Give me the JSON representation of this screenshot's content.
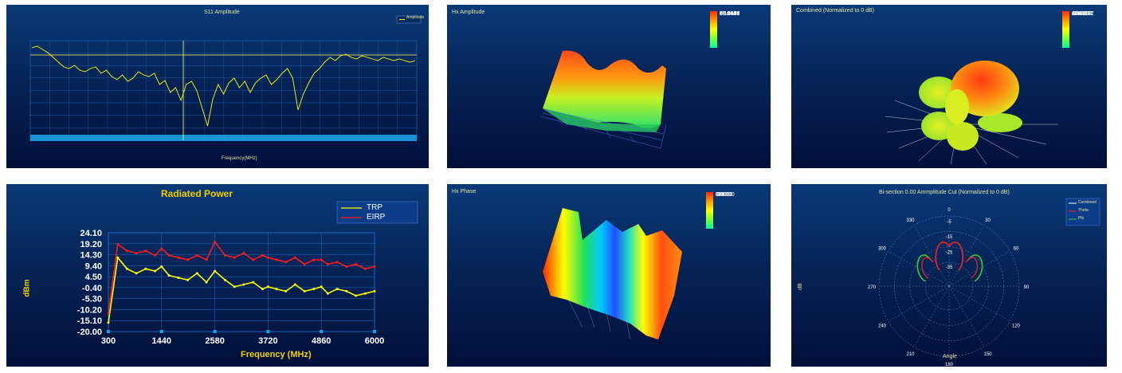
{
  "colors": {
    "panel_bg_top": "#0a3a78",
    "panel_bg_bottom": "#020f3a",
    "yellow": "#ffff00",
    "red": "#ff1a1a",
    "green": "#33cc33",
    "grid": "#1e6ec8"
  },
  "panels": {
    "s11": {
      "title": "S11 Amplitude",
      "legend": "Amplitude",
      "xlabel": "Frequency(MHz)"
    },
    "hx_amp": {
      "title": "Hx Amplitude",
      "scale": [
        "80.3856",
        "73.5346",
        "66.8837",
        "60.1327",
        "53.3818"
      ],
      "unit": "dBuA/m"
    },
    "combined": {
      "title": "Combined (Normalized to 0 dB)",
      "scale": [
        "16.3963",
        "6.4640",
        "-3.4684",
        "-13.3807",
        "-23.3131"
      ],
      "unit": "A/m"
    },
    "hx_phase": {
      "title": "Hx Phase",
      "scale": [
        "180.00",
        "90.00",
        "0.00",
        "-90.00",
        "-180.00"
      ]
    },
    "polar": {
      "title": "Bi-section 0.00 Ammplitude Cut (Normalized to 0 dB)",
      "ylabel": "dB",
      "xlabel": "Angle",
      "legend": [
        "Combined",
        "Theta",
        "Phi"
      ],
      "angle_labels": [
        "0",
        "30",
        "60",
        "90",
        "120",
        "150",
        "180",
        "210",
        "240",
        "270",
        "300",
        "330"
      ],
      "ring_labels": [
        "-5",
        "-15",
        "-25",
        "-35"
      ]
    }
  },
  "chart_data": [
    {
      "type": "line",
      "title": "Radiated Power",
      "xlabel": "Frequency (MHz)",
      "ylabel": "dBm",
      "xlim": [
        300,
        6000
      ],
      "ylim": [
        -20,
        24.1
      ],
      "x_ticks": [
        "300",
        "1440",
        "2580",
        "3720",
        "4860",
        "6000"
      ],
      "y_ticks": [
        "24.10",
        "19.20",
        "14.30",
        "9.40",
        "4.50",
        "-0.40",
        "-5.30",
        "-10.20",
        "-15.10",
        "-20.00"
      ],
      "legend_position": "top-right",
      "x": [
        300,
        500,
        700,
        900,
        1100,
        1300,
        1440,
        1600,
        1800,
        2000,
        2200,
        2400,
        2580,
        2800,
        3000,
        3200,
        3400,
        3600,
        3720,
        3900,
        4100,
        4300,
        4500,
        4700,
        4860,
        5000,
        5200,
        5400,
        5600,
        5800,
        6000
      ],
      "series": [
        {
          "name": "TRP",
          "color": "#ffff00",
          "values": [
            -16,
            13,
            8,
            6,
            8,
            7,
            9,
            5,
            4,
            3,
            6,
            2,
            7,
            3,
            0,
            1,
            2,
            -1,
            0,
            -1,
            -2,
            1,
            -2,
            -1,
            0,
            -3,
            -1,
            -2,
            -4,
            -3,
            -2
          ]
        },
        {
          "name": "EIRP",
          "color": "#ff1a1a",
          "values": [
            -12,
            19,
            16,
            15,
            16,
            14,
            17,
            14,
            13,
            12,
            14,
            12,
            20,
            14,
            13,
            15,
            12,
            14,
            13,
            12,
            11,
            13,
            10,
            12,
            12,
            10,
            11,
            9,
            10,
            8,
            9
          ]
        }
      ]
    }
  ]
}
